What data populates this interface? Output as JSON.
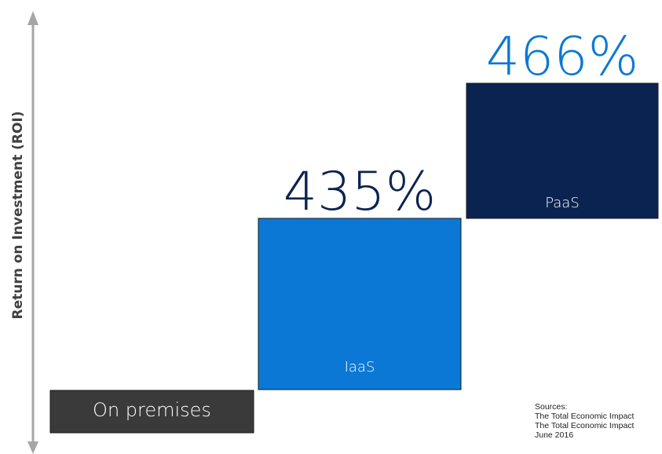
{
  "chart_data": {
    "type": "bar",
    "title": "",
    "xlabel": "",
    "ylabel": "Return on Investment (ROI)",
    "categories": [
      "On premises",
      "IaaS",
      "PaaS"
    ],
    "value_labels": [
      "",
      "435%",
      "466%"
    ],
    "values": [
      null,
      435,
      466
    ],
    "layout_style": "staircase",
    "grid": false,
    "legend": "none"
  },
  "colors": {
    "on_premises": "#3a3a3a",
    "iaas": "#0b78d6",
    "paas": "#0b2351",
    "iaas_value_text": "#0b2351",
    "paas_value_text": "#0b78d6",
    "axis_arrow": "#a6a6a6"
  },
  "sources": {
    "heading": "Sources:",
    "lines": [
      "The Total Economic Impact",
      "The Total Economic Impact",
      "June 2016"
    ]
  }
}
